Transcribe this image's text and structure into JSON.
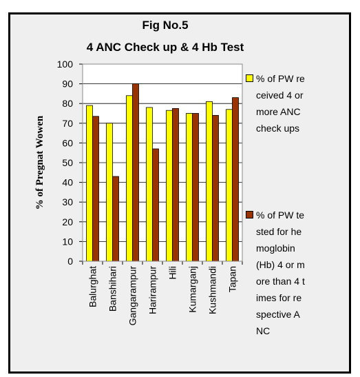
{
  "chart_data": {
    "type": "bar",
    "title": "Fig No.5",
    "subtitle": "4 ANC Check up & 4 Hb Test",
    "y_label": "% of Pregnat Wowen",
    "categories": [
      "Balurghat",
      "Banshihari",
      "Gangarampur",
      "Harirampur",
      "Hili",
      "Kumarganj",
      "Kushmandi",
      "Tapan"
    ],
    "series": [
      {
        "name": "% of PW received 4 or more ANC check ups",
        "color": "#ffff00",
        "values": [
          79,
          70,
          84,
          78,
          76.5,
          75,
          81,
          77
        ]
      },
      {
        "name": "% of PW tested for hemoglobin (Hb) 4 or more than 4 times for respective ANC",
        "color": "#993300",
        "values": [
          73.5,
          43,
          90,
          57,
          77.5,
          75,
          74,
          83
        ]
      }
    ],
    "ylim": [
      0,
      100
    ],
    "yticks": [
      0,
      10,
      20,
      30,
      40,
      50,
      60,
      70,
      80,
      90,
      100
    ],
    "grid": true,
    "legend": "right"
  }
}
